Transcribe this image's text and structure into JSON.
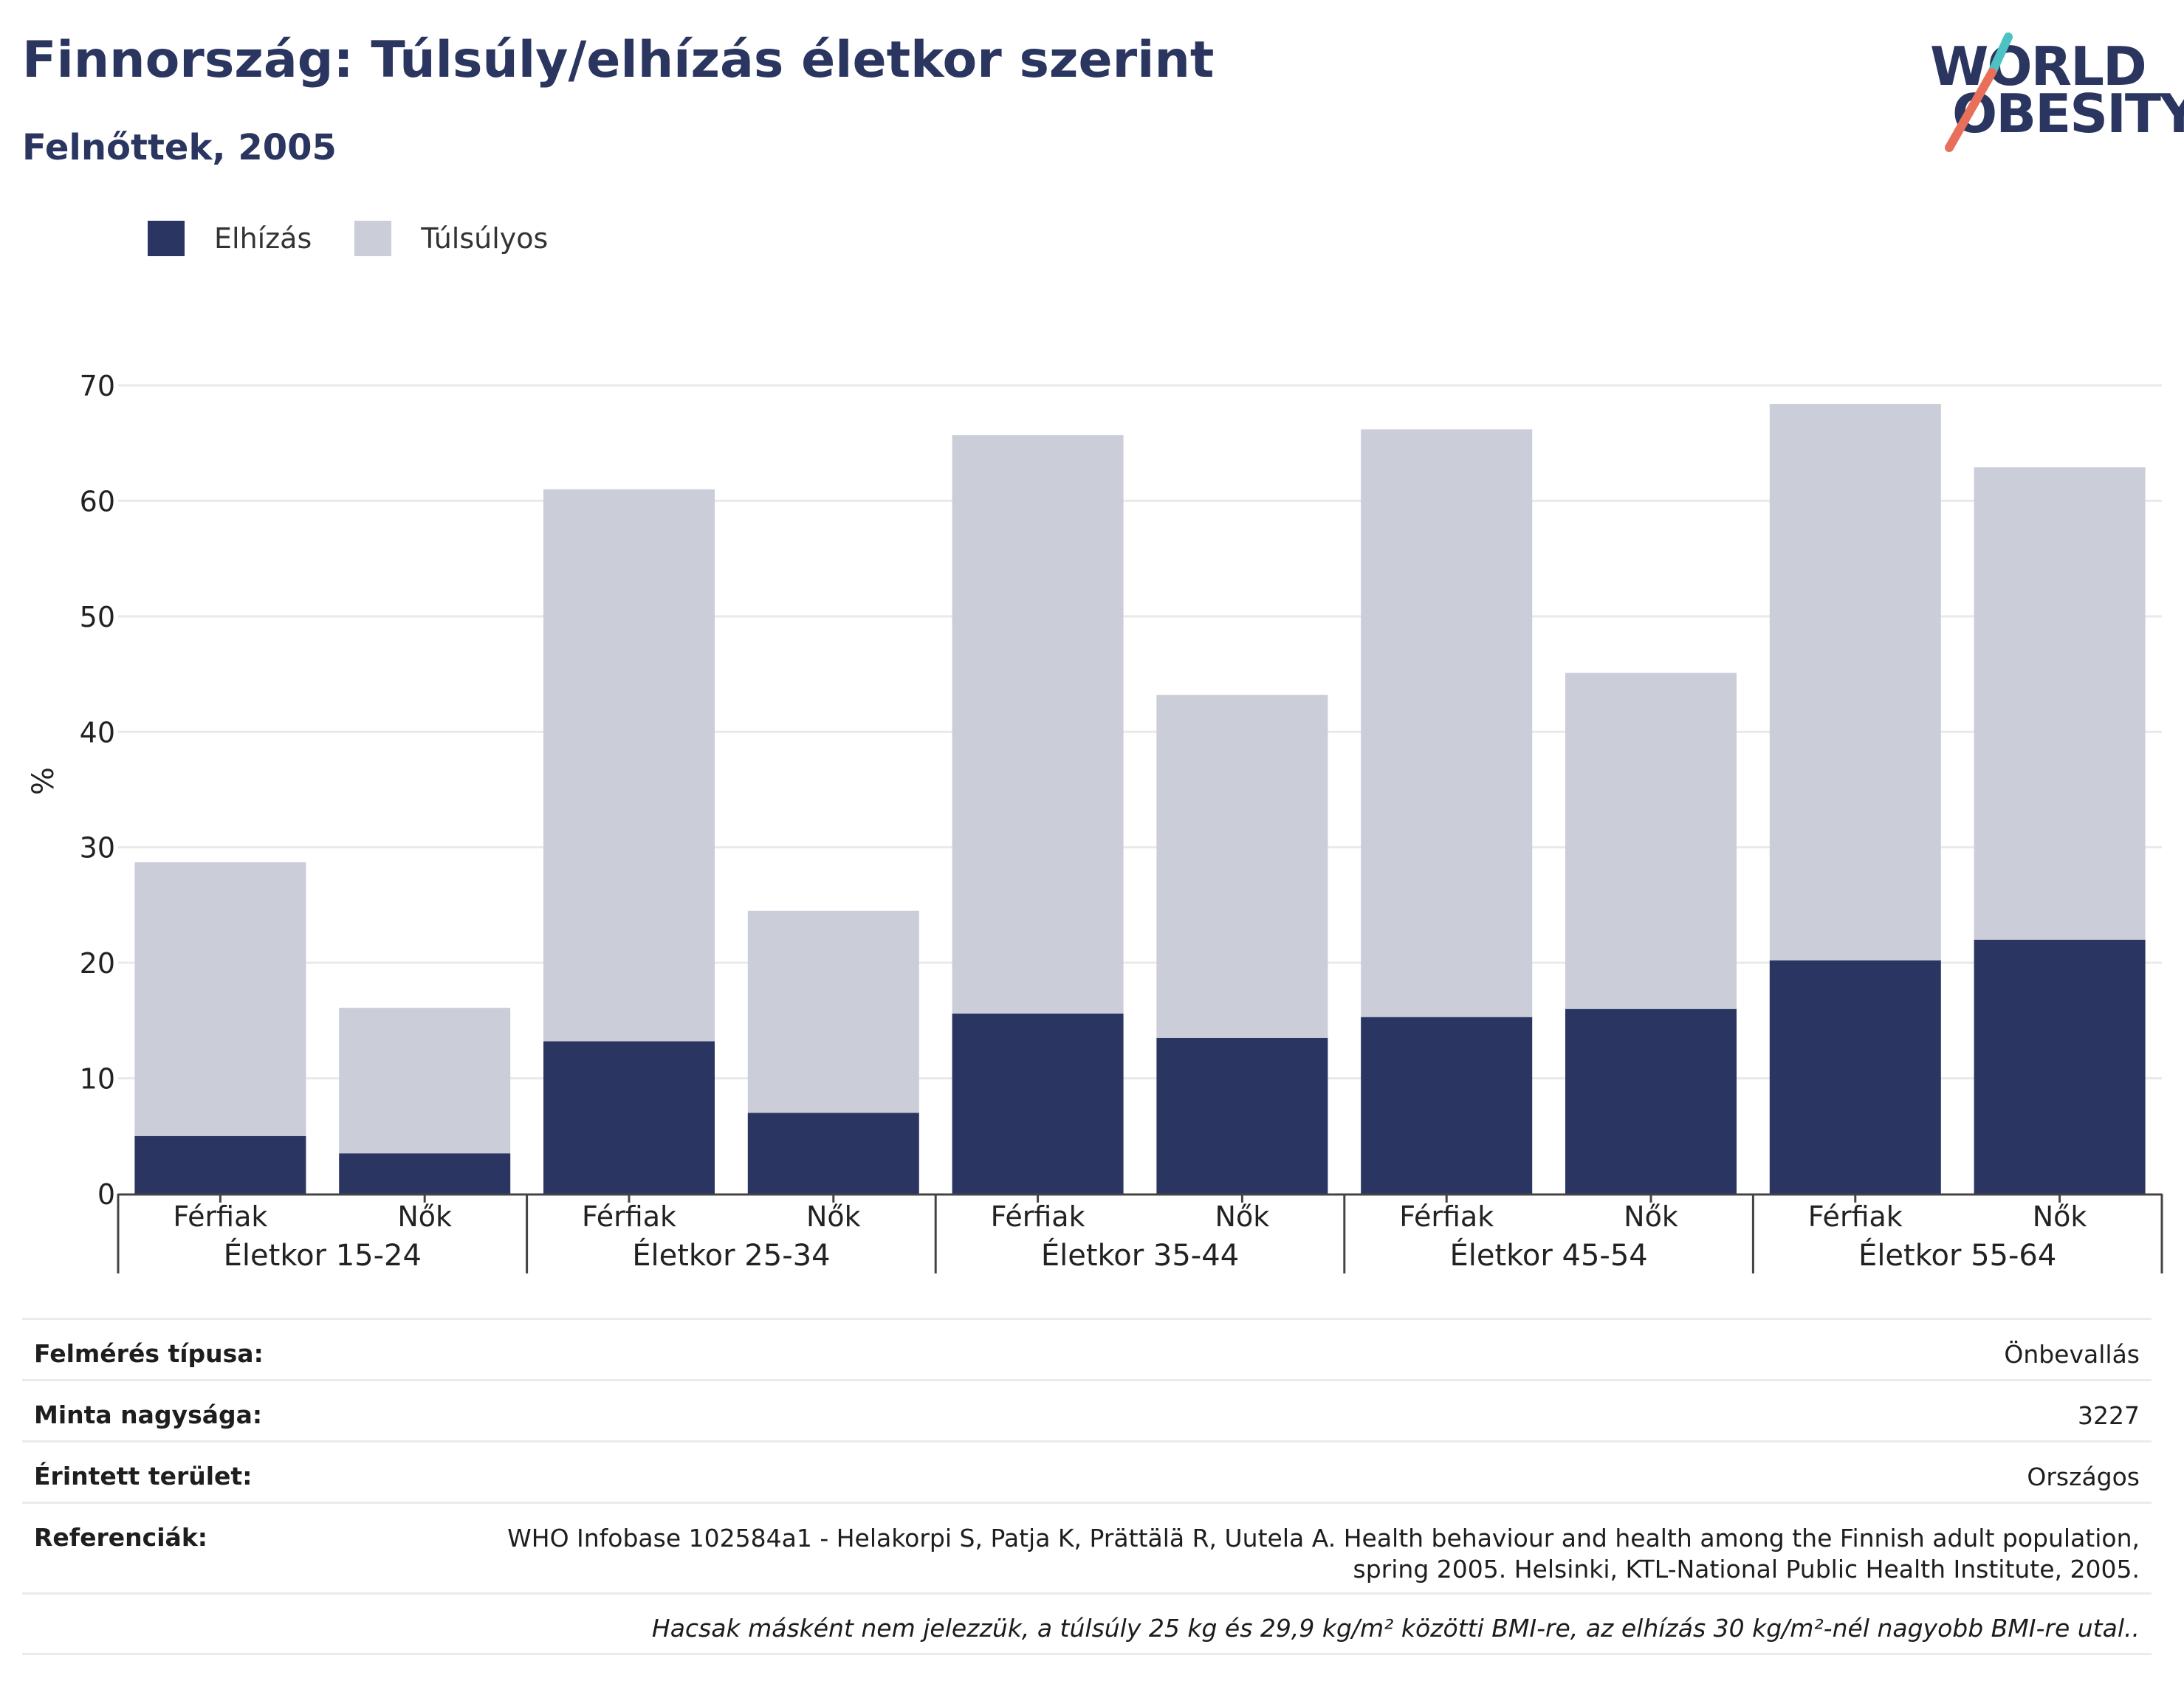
{
  "header": {
    "title": "Finnország: Túlsúly/elhízás életkor szerint",
    "subtitle": "Felnőttek, 2005"
  },
  "logo": {
    "line1": "WORLD",
    "line2": "OBESITY",
    "slash_colors": [
      "#4ec2c2",
      "#e8705a"
    ]
  },
  "colors": {
    "obesity": "#2a3561",
    "overweight": "#cbcdd8",
    "grid": "#e9e9e9",
    "axis": "#444444"
  },
  "chart_data": {
    "type": "bar",
    "stacked": true,
    "ylabel": "%",
    "ylim": [
      0,
      70
    ],
    "yticks": [
      0,
      10,
      20,
      30,
      40,
      50,
      60,
      70
    ],
    "grid": true,
    "legend": {
      "placement": "top-left",
      "entries": [
        "Elhízás",
        "Túlsúlyos"
      ]
    },
    "groups": [
      "Életkor 15-24",
      "Életkor 25-34",
      "Életkor 35-44",
      "Életkor 45-54",
      "Életkor 55-64"
    ],
    "categories": [
      "Férfiak",
      "Nők",
      "Férfiak",
      "Nők",
      "Férfiak",
      "Nők",
      "Férfiak",
      "Nők",
      "Férfiak",
      "Nők"
    ],
    "series": [
      {
        "name": "Elhízás",
        "values": [
          5.0,
          3.5,
          13.2,
          7.0,
          15.6,
          13.5,
          15.3,
          16.0,
          20.2,
          22.0
        ]
      },
      {
        "name": "Túlsúlyos",
        "values": [
          23.7,
          12.6,
          47.8,
          17.5,
          50.1,
          29.7,
          50.9,
          29.1,
          48.2,
          40.9
        ]
      }
    ]
  },
  "info": {
    "rows": [
      {
        "label": "Felmérés típusa:",
        "value": "Önbevallás"
      },
      {
        "label": "Minta nagysága:",
        "value": "3227"
      },
      {
        "label": "Érintett terület:",
        "value": "Országos"
      }
    ],
    "references": {
      "label": "Referenciák:",
      "line1": "WHO Infobase 102584a1 - Helakorpi S, Patja K, Prättälä R, Uutela A. Health behaviour and health among the Finnish adult population,",
      "line2": "spring 2005. Helsinki, KTL-National Public Health Institute, 2005."
    },
    "note": "Hacsak másként nem jelezzük, a túlsúly 25 kg és 29,9 kg/m² közötti BMI-re, az elhízás 30 kg/m²-nél nagyobb BMI-re utal.."
  }
}
